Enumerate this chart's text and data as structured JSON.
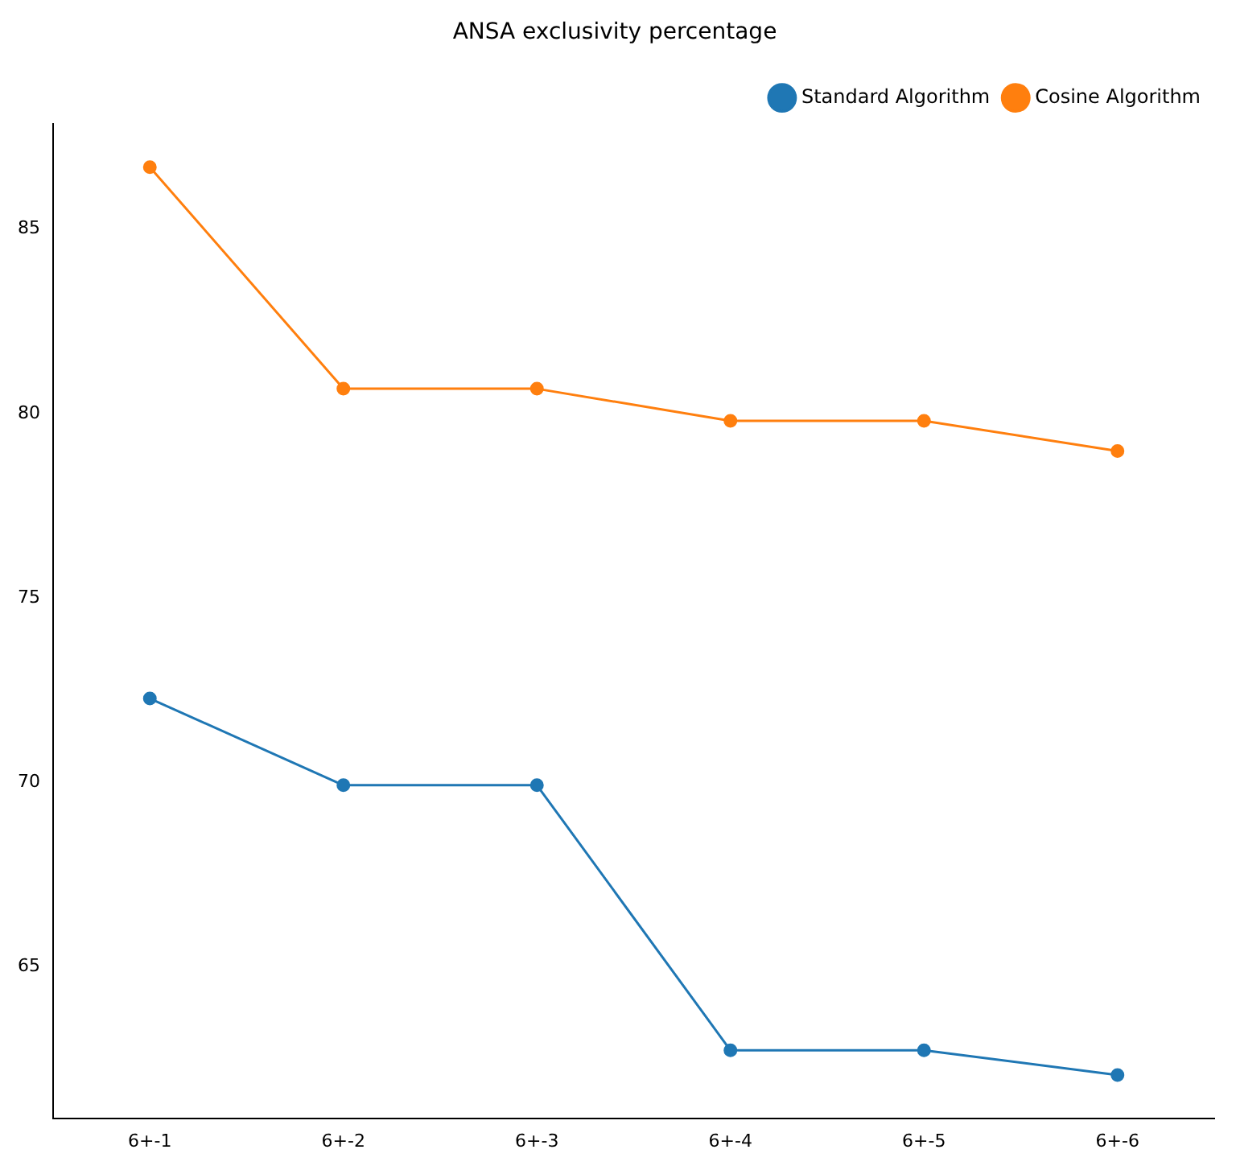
{
  "chart_data": {
    "type": "line",
    "title": "ANSA exclusivity percentage",
    "categories": [
      "6+-1",
      "6+-2",
      "6+-3",
      "6+-4",
      "6+-5",
      "6+-6"
    ],
    "series": [
      {
        "name": "Standard Algorithm",
        "color": "#1f77b4",
        "values": [
          72.27,
          69.92,
          69.92,
          62.73,
          62.73,
          62.06
        ]
      },
      {
        "name": "Cosine Algorithm",
        "color": "#ff7f0e",
        "values": [
          86.68,
          80.67,
          80.67,
          79.8,
          79.8,
          78.98
        ]
      }
    ],
    "ylim": [
      60.89,
      87.86
    ],
    "yticks": [
      65,
      70,
      75,
      80,
      85
    ],
    "grid": false,
    "legend": "top right",
    "marker": "circle",
    "line_style": "solid"
  }
}
